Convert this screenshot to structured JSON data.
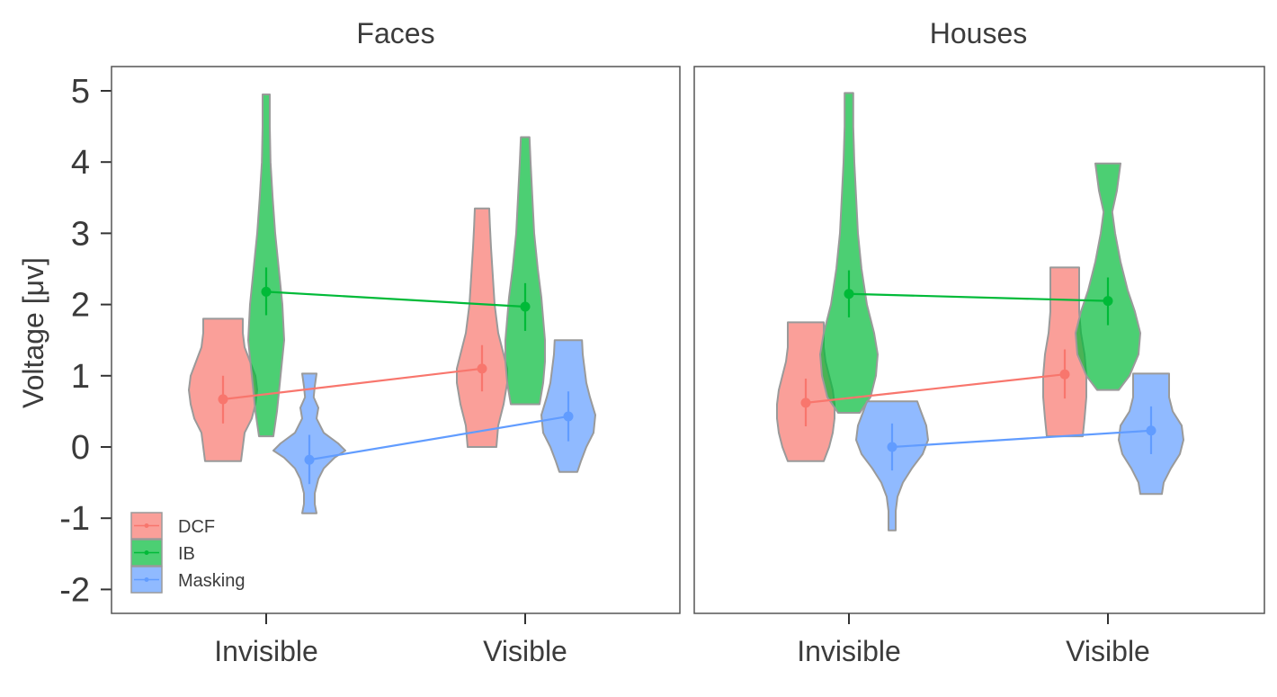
{
  "chart_data": {
    "type": "violin",
    "ylabel": "Voltage [μv]",
    "ylim": [
      -2.5,
      5.35
    ],
    "yticks": [
      -2,
      -1,
      0,
      1,
      2,
      3,
      4,
      5
    ],
    "categories": [
      "Invisible",
      "Visible"
    ],
    "legend": {
      "placement": "bottom-left",
      "entries": [
        "DCF",
        "IB",
        "Masking"
      ]
    },
    "colors": {
      "DCF": "#F8766D",
      "IB": "#00BA38",
      "Masking": "#619CFF"
    },
    "panels": [
      {
        "title": "Faces",
        "series": [
          {
            "name": "DCF",
            "means": [
              0.67,
              1.1
            ],
            "ci": [
              [
                0.33,
                1.0
              ],
              [
                0.78,
                1.43
              ]
            ],
            "violins": [
              {
                "range": [
                  -0.2,
                  1.8
                ],
                "profile": [
                  [
                    -0.2,
                    0.5
                  ],
                  [
                    0.0,
                    0.55
                  ],
                  [
                    0.2,
                    0.6
                  ],
                  [
                    0.4,
                    0.8
                  ],
                  [
                    0.6,
                    0.9
                  ],
                  [
                    0.8,
                    0.95
                  ],
                  [
                    1.0,
                    0.9
                  ],
                  [
                    1.2,
                    0.75
                  ],
                  [
                    1.4,
                    0.6
                  ],
                  [
                    1.6,
                    0.55
                  ],
                  [
                    1.8,
                    0.55
                  ]
                ]
              },
              {
                "range": [
                  0.0,
                  3.35
                ],
                "profile": [
                  [
                    0.0,
                    0.4
                  ],
                  [
                    0.3,
                    0.45
                  ],
                  [
                    0.6,
                    0.6
                  ],
                  [
                    0.9,
                    0.7
                  ],
                  [
                    1.1,
                    0.7
                  ],
                  [
                    1.3,
                    0.6
                  ],
                  [
                    1.6,
                    0.45
                  ],
                  [
                    2.0,
                    0.35
                  ],
                  [
                    2.4,
                    0.3
                  ],
                  [
                    2.8,
                    0.25
                  ],
                  [
                    3.1,
                    0.22
                  ],
                  [
                    3.35,
                    0.2
                  ]
                ]
              }
            ]
          },
          {
            "name": "IB",
            "means": [
              2.18,
              1.97
            ],
            "ci": [
              [
                1.85,
                2.52
              ],
              [
                1.63,
                2.3
              ]
            ],
            "violins": [
              {
                "range": [
                  0.15,
                  4.95
                ],
                "profile": [
                  [
                    0.15,
                    0.2
                  ],
                  [
                    0.5,
                    0.3
                  ],
                  [
                    1.0,
                    0.4
                  ],
                  [
                    1.5,
                    0.5
                  ],
                  [
                    2.0,
                    0.45
                  ],
                  [
                    2.5,
                    0.35
                  ],
                  [
                    3.0,
                    0.25
                  ],
                  [
                    3.5,
                    0.18
                  ],
                  [
                    4.0,
                    0.12
                  ],
                  [
                    4.5,
                    0.1
                  ],
                  [
                    4.95,
                    0.1
                  ]
                ]
              },
              {
                "range": [
                  0.6,
                  4.35
                ],
                "profile": [
                  [
                    0.6,
                    0.4
                  ],
                  [
                    0.9,
                    0.5
                  ],
                  [
                    1.2,
                    0.55
                  ],
                  [
                    1.5,
                    0.55
                  ],
                  [
                    1.8,
                    0.5
                  ],
                  [
                    2.1,
                    0.45
                  ],
                  [
                    2.5,
                    0.35
                  ],
                  [
                    3.0,
                    0.25
                  ],
                  [
                    3.5,
                    0.2
                  ],
                  [
                    4.0,
                    0.15
                  ],
                  [
                    4.35,
                    0.12
                  ]
                ]
              }
            ]
          },
          {
            "name": "Masking",
            "means": [
              -0.18,
              0.43
            ],
            "ci": [
              [
                -0.52,
                0.17
              ],
              [
                0.08,
                0.78
              ]
            ],
            "violins": [
              {
                "range": [
                  -0.93,
                  1.03
                ],
                "profile": [
                  [
                    -0.93,
                    0.2
                  ],
                  [
                    -0.8,
                    0.15
                  ],
                  [
                    -0.65,
                    0.15
                  ],
                  [
                    -0.45,
                    0.25
                  ],
                  [
                    -0.3,
                    0.4
                  ],
                  [
                    -0.15,
                    0.7
                  ],
                  [
                    -0.05,
                    1.0
                  ],
                  [
                    0.05,
                    0.8
                  ],
                  [
                    0.2,
                    0.4
                  ],
                  [
                    0.4,
                    0.2
                  ],
                  [
                    0.55,
                    0.25
                  ],
                  [
                    0.7,
                    0.12
                  ],
                  [
                    0.85,
                    0.15
                  ],
                  [
                    1.03,
                    0.2
                  ]
                ]
              },
              {
                "range": [
                  -0.35,
                  1.5
                ],
                "profile": [
                  [
                    -0.35,
                    0.25
                  ],
                  [
                    -0.2,
                    0.35
                  ],
                  [
                    0.0,
                    0.5
                  ],
                  [
                    0.2,
                    0.7
                  ],
                  [
                    0.45,
                    0.75
                  ],
                  [
                    0.7,
                    0.6
                  ],
                  [
                    0.9,
                    0.5
                  ],
                  [
                    1.1,
                    0.45
                  ],
                  [
                    1.3,
                    0.4
                  ],
                  [
                    1.5,
                    0.38
                  ]
                ]
              }
            ]
          }
        ]
      },
      {
        "title": "Houses",
        "series": [
          {
            "name": "DCF",
            "means": [
              0.62,
              1.02
            ],
            "ci": [
              [
                0.29,
                0.96
              ],
              [
                0.68,
                1.37
              ]
            ],
            "violins": [
              {
                "range": [
                  -0.2,
                  1.75
                ],
                "profile": [
                  [
                    -0.2,
                    0.5
                  ],
                  [
                    0.0,
                    0.65
                  ],
                  [
                    0.2,
                    0.75
                  ],
                  [
                    0.4,
                    0.8
                  ],
                  [
                    0.6,
                    0.8
                  ],
                  [
                    0.8,
                    0.75
                  ],
                  [
                    1.0,
                    0.65
                  ],
                  [
                    1.2,
                    0.55
                  ],
                  [
                    1.4,
                    0.5
                  ],
                  [
                    1.6,
                    0.5
                  ],
                  [
                    1.75,
                    0.5
                  ]
                ]
              },
              {
                "range": [
                  0.15,
                  2.52
                ],
                "profile": [
                  [
                    0.15,
                    0.5
                  ],
                  [
                    0.4,
                    0.55
                  ],
                  [
                    0.7,
                    0.6
                  ],
                  [
                    1.0,
                    0.6
                  ],
                  [
                    1.3,
                    0.55
                  ],
                  [
                    1.6,
                    0.45
                  ],
                  [
                    1.9,
                    0.4
                  ],
                  [
                    2.2,
                    0.4
                  ],
                  [
                    2.52,
                    0.4
                  ]
                ]
              }
            ]
          },
          {
            "name": "IB",
            "means": [
              2.15,
              2.05
            ],
            "ci": [
              [
                1.82,
                2.48
              ],
              [
                1.71,
                2.38
              ]
            ],
            "violins": [
              {
                "range": [
                  0.48,
                  4.97
                ],
                "profile": [
                  [
                    0.48,
                    0.3
                  ],
                  [
                    0.7,
                    0.6
                  ],
                  [
                    1.0,
                    0.75
                  ],
                  [
                    1.3,
                    0.8
                  ],
                  [
                    1.6,
                    0.7
                  ],
                  [
                    2.0,
                    0.5
                  ],
                  [
                    2.5,
                    0.35
                  ],
                  [
                    3.0,
                    0.25
                  ],
                  [
                    3.5,
                    0.2
                  ],
                  [
                    4.0,
                    0.15
                  ],
                  [
                    4.5,
                    0.12
                  ],
                  [
                    4.97,
                    0.12
                  ]
                ]
              },
              {
                "range": [
                  0.8,
                  3.98
                ],
                "profile": [
                  [
                    0.8,
                    0.3
                  ],
                  [
                    1.0,
                    0.6
                  ],
                  [
                    1.3,
                    0.85
                  ],
                  [
                    1.6,
                    0.9
                  ],
                  [
                    1.9,
                    0.75
                  ],
                  [
                    2.2,
                    0.55
                  ],
                  [
                    2.6,
                    0.35
                  ],
                  [
                    3.0,
                    0.2
                  ],
                  [
                    3.3,
                    0.12
                  ],
                  [
                    3.6,
                    0.25
                  ],
                  [
                    3.98,
                    0.35
                  ]
                ]
              }
            ]
          },
          {
            "name": "Masking",
            "means": [
              0.0,
              0.23
            ],
            "ci": [
              [
                -0.33,
                0.33
              ],
              [
                -0.1,
                0.57
              ]
            ],
            "violins": [
              {
                "range": [
                  -1.17,
                  0.64
                ],
                "profile": [
                  [
                    -1.17,
                    0.1
                  ],
                  [
                    -0.9,
                    0.1
                  ],
                  [
                    -0.7,
                    0.15
                  ],
                  [
                    -0.5,
                    0.3
                  ],
                  [
                    -0.3,
                    0.55
                  ],
                  [
                    -0.1,
                    0.85
                  ],
                  [
                    0.1,
                    1.0
                  ],
                  [
                    0.3,
                    0.95
                  ],
                  [
                    0.5,
                    0.8
                  ],
                  [
                    0.64,
                    0.7
                  ]
                ]
              },
              {
                "range": [
                  -0.66,
                  1.03
                ],
                "profile": [
                  [
                    -0.66,
                    0.3
                  ],
                  [
                    -0.5,
                    0.35
                  ],
                  [
                    -0.3,
                    0.55
                  ],
                  [
                    -0.1,
                    0.8
                  ],
                  [
                    0.1,
                    0.9
                  ],
                  [
                    0.3,
                    0.85
                  ],
                  [
                    0.5,
                    0.6
                  ],
                  [
                    0.7,
                    0.5
                  ],
                  [
                    0.9,
                    0.5
                  ],
                  [
                    1.03,
                    0.5
                  ]
                ]
              }
            ]
          }
        ]
      }
    ]
  }
}
